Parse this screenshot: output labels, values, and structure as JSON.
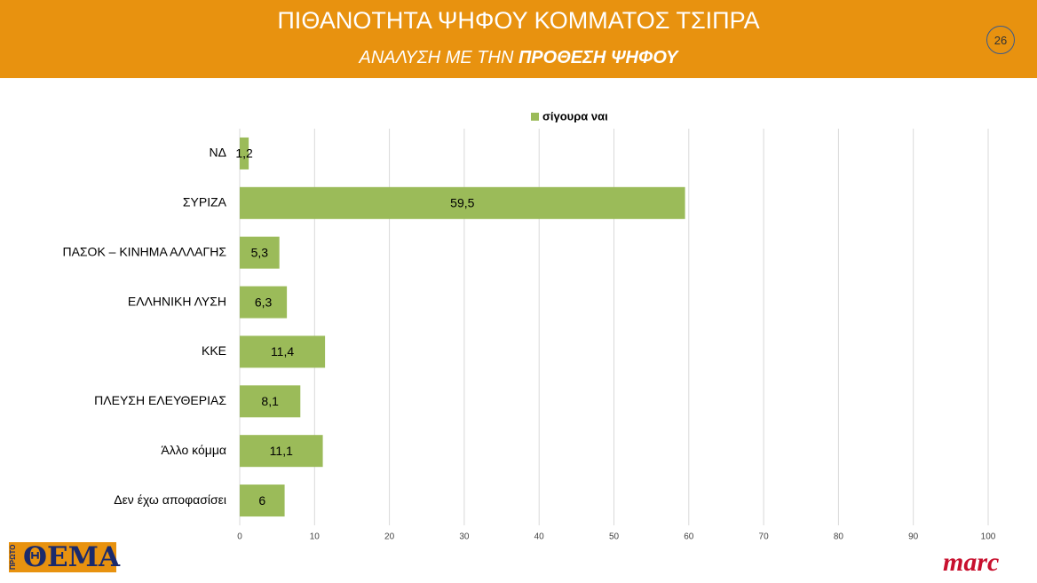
{
  "page_number": "26",
  "logos": {
    "left": "ΘΕΜΑ",
    "left_small": "ΠΡΩΤΟ",
    "right": "marc"
  },
  "chart_data": {
    "type": "bar",
    "orientation": "horizontal",
    "title": "ΠΙΘΑΝΟΤΗΤΑ ΨΗΦΟΥ ΚΟΜΜΑΤΟΣ ΤΣΙΠΡΑ",
    "subtitle": "ΑΝΑΛΥΣΗ ΜΕ ΤΗΝ ",
    "subtitle_bold": "ΠΡΟΘΕΣΗ ΨΗΦΟΥ",
    "categories": [
      "ΝΔ",
      "ΣΥΡΙΖΑ",
      "ΠΑΣΟΚ – ΚΙΝΗΜΑ ΑΛΛΑΓΗΣ",
      "ΕΛΛΗΝΙΚΗ ΛΥΣΗ",
      "ΚΚΕ",
      "ΠΛΕΥΣΗ ΕΛΕΥΘΕΡΙΑΣ",
      "Άλλο κόμμα",
      "Δεν έχω αποφασίσει"
    ],
    "series": [
      {
        "name": "σίγουρα ναι",
        "color": "#9BBB59",
        "values": [
          1.2,
          59.5,
          5.3,
          6.3,
          11.4,
          8.1,
          11.1,
          6
        ],
        "value_labels": [
          "1,2",
          "59,5",
          "5,3",
          "6,3",
          "11,4",
          "8,1",
          "11,1",
          "6"
        ]
      }
    ],
    "xlim": [
      0,
      100
    ],
    "xticks": [
      0,
      10,
      20,
      30,
      40,
      50,
      60,
      70,
      80,
      90,
      100
    ],
    "grid": true,
    "legend": "top"
  }
}
